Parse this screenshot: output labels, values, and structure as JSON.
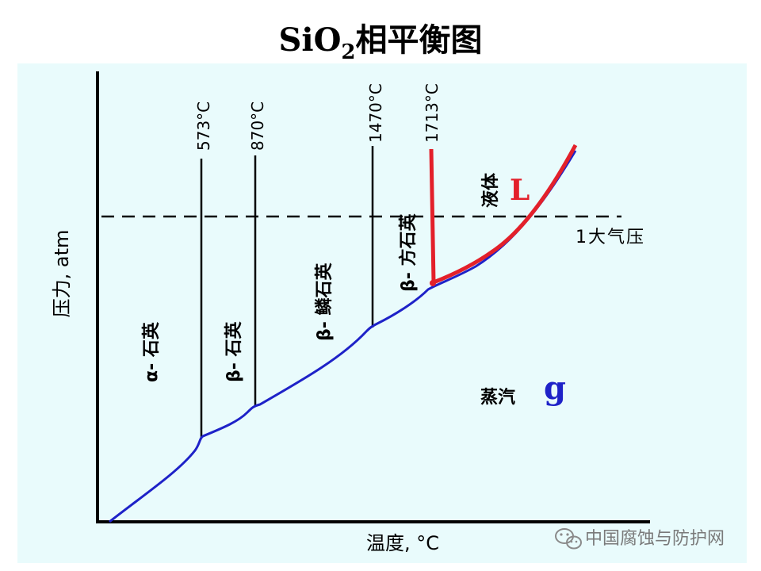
{
  "title": {
    "main": "SiO",
    "sub": "2",
    "rest": "相平衡图"
  },
  "axes": {
    "y_label": "压力, atm",
    "x_label": "温度, °C"
  },
  "temperatures": [
    "573°C",
    "870°C",
    "1470°C",
    "1713°C"
  ],
  "pressure_line_label": "1大气压",
  "phases": {
    "alpha_quartz": "α- 石英",
    "beta_quartz": "β- 石英",
    "beta_tridymite": "β- 鳞石英",
    "beta_cristobalite": "β- 方石英",
    "liquid": "液体",
    "liquid_symbol": "L",
    "vapor": "蒸汽",
    "vapor_symbol": "g"
  },
  "watermark": "中国腐蚀与防护网",
  "colors": {
    "panel": "#E9FBFC",
    "phase_boundary": "#1E22C8",
    "melting_curve": "#E3202A",
    "vapor_symbol": "#1E22C8",
    "liquid_symbol": "#E3202A",
    "axis": "#000000"
  }
}
